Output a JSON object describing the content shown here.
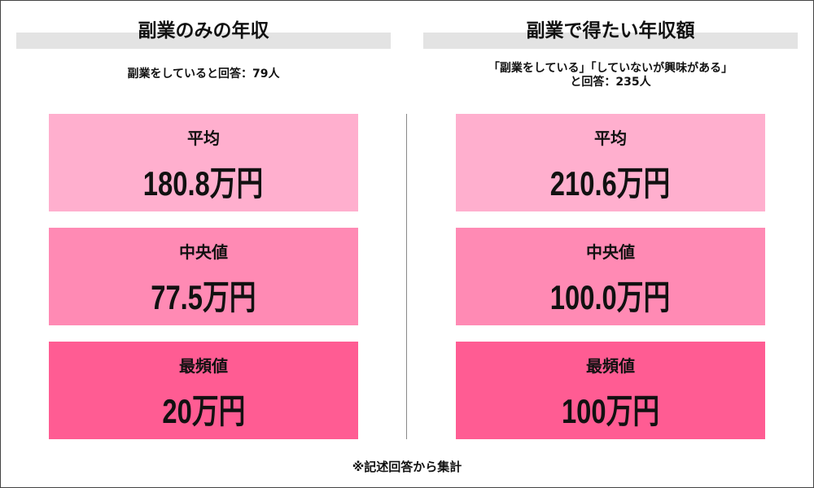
{
  "colors": {
    "mean": "#ffafce",
    "median": "#ff8ab4",
    "mode": "#ff5c93",
    "header_bar": "#e3e3e3"
  },
  "left": {
    "title": "副業のみの年収",
    "subtitle": "副業をしていると回答：79人",
    "stats": [
      {
        "label": "平均",
        "value": "180.8万円"
      },
      {
        "label": "中央値",
        "value": "77.5万円"
      },
      {
        "label": "最頻値",
        "value": "20万円"
      }
    ]
  },
  "right": {
    "title": "副業で得たい年収額",
    "subtitle_line1": "「副業をしている」「していないが興味がある」",
    "subtitle_line2": "と回答：235人",
    "stats": [
      {
        "label": "平均",
        "value": "210.6万円"
      },
      {
        "label": "中央値",
        "value": "100.0万円"
      },
      {
        "label": "最頻値",
        "value": "100万円"
      }
    ]
  },
  "footnote": "※記述回答から集計"
}
